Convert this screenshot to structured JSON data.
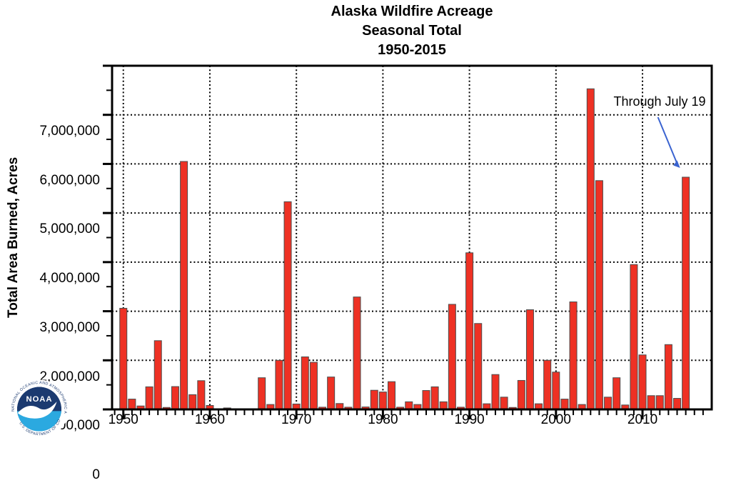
{
  "title": {
    "line1": "Alaska Wildfire Acreage",
    "line2": "Seasonal Total",
    "line3": "1950-2015"
  },
  "axis": {
    "y_title": "Total Area Burned, Acres",
    "y_tick_labels": [
      "0",
      "1,000,000",
      "2,000,000",
      "3,000,000",
      "4,000,000",
      "5,000,000",
      "6,000,000",
      "7,000,000"
    ],
    "x_tick_labels": [
      "1950",
      "1960",
      "1970",
      "1980",
      "1990",
      "2000",
      "2010"
    ]
  },
  "annotation": {
    "text": "Through July 19",
    "arrow_color": "#3a63d0",
    "points_to_year": 2015
  },
  "logo": {
    "acronym": "NOAA",
    "text_top": "NATIONAL OCEANIC AND ATMOSPHERIC ADMINISTRATION",
    "text_bottom": "U.S. DEPARTMENT OF COMMERCE",
    "navy": "#1b3a70",
    "light_blue": "#2ba9e0"
  },
  "chart_data": {
    "type": "bar",
    "title": "Alaska Wildfire Acreage Seasonal Total 1950-2015",
    "xlabel": "",
    "ylabel": "Total Area Burned, Acres",
    "xlim": [
      1948.7,
      2018.0
    ],
    "ylim": [
      0,
      7000000
    ],
    "y_major_step": 1000000,
    "y_minor_step": 500000,
    "x_labeled_ticks": [
      1950,
      1960,
      1970,
      1980,
      1990,
      2000,
      2010
    ],
    "grid": "dotted-major-both-axes",
    "legend": "none",
    "bar_color": "#ee3124",
    "bar_edge_color": "#4d4d4d",
    "years": [
      1950,
      1951,
      1952,
      1953,
      1954,
      1955,
      1956,
      1957,
      1958,
      1959,
      1960,
      1961,
      1962,
      1963,
      1964,
      1965,
      1966,
      1967,
      1968,
      1969,
      1970,
      1971,
      1972,
      1973,
      1974,
      1975,
      1976,
      1977,
      1978,
      1979,
      1980,
      1981,
      1982,
      1983,
      1984,
      1985,
      1986,
      1987,
      1988,
      1989,
      1990,
      1991,
      1992,
      1993,
      1994,
      1995,
      1996,
      1997,
      1998,
      1999,
      2000,
      2001,
      2002,
      2003,
      2004,
      2005,
      2006,
      2007,
      2008,
      2009,
      2010,
      2011,
      2012,
      2013,
      2014,
      2015
    ],
    "values": [
      2060000,
      210000,
      70000,
      460000,
      1400000,
      40000,
      465000,
      5050000,
      300000,
      585000,
      80000,
      0,
      30000,
      0,
      0,
      0,
      645000,
      100000,
      1000000,
      4230000,
      110000,
      1070000,
      960000,
      45000,
      660000,
      120000,
      45000,
      2290000,
      50000,
      390000,
      355000,
      565000,
      45000,
      155000,
      100000,
      385000,
      460000,
      155000,
      2140000,
      45000,
      3190000,
      1750000,
      115000,
      710000,
      250000,
      40000,
      590000,
      2030000,
      115000,
      1000000,
      760000,
      210000,
      2190000,
      100000,
      6530000,
      4660000,
      250000,
      645000,
      90000,
      2950000,
      1110000,
      280000,
      280000,
      1320000,
      225000,
      4730000
    ]
  }
}
